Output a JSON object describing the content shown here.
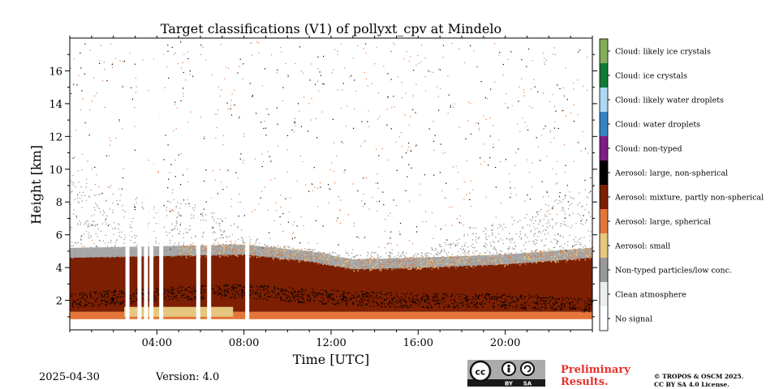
{
  "chart_data": {
    "type": "heatmap",
    "title": "Target classifications (V1) of pollyxt_cpv at Mindelo",
    "xlabel": "Time [UTC]",
    "ylabel": "Height [km]",
    "x_unit": "hours UTC",
    "xlim": [
      0,
      24
    ],
    "ylim": [
      0.2,
      18
    ],
    "x_tick_values": [
      4,
      8,
      12,
      16,
      20
    ],
    "x_tick_labels": [
      "04:00",
      "08:00",
      "12:00",
      "16:00",
      "20:00"
    ],
    "y_tick_values": [
      2,
      4,
      6,
      8,
      10,
      12,
      14,
      16
    ],
    "y_tick_labels": [
      "2",
      "4",
      "6",
      "8",
      "10",
      "12",
      "14",
      "16"
    ],
    "legend_placement": "right colorbar",
    "classes": [
      {
        "label": "No signal",
        "color": "#ffffff"
      },
      {
        "label": "Clean atmosphere",
        "color": "#eeeeee"
      },
      {
        "label": "Non-typed particles/low conc.",
        "color": "#999999"
      },
      {
        "label": "Aerosol: small",
        "color": "#e5c77f"
      },
      {
        "label": "Aerosol: large, spherical",
        "color": "#e5763a"
      },
      {
        "label": "Aerosol: mixture, partly non-spherical",
        "color": "#7d1f02"
      },
      {
        "label": "Aerosol: large, non-spherical",
        "color": "#000000"
      },
      {
        "label": "Cloud: non-typed",
        "color": "#7f1d86"
      },
      {
        "label": "Cloud: water droplets",
        "color": "#3584c4"
      },
      {
        "label": "Cloud: likely water droplets",
        "color": "#b0d8f2"
      },
      {
        "label": "Cloud: ice crystals",
        "color": "#107a37"
      },
      {
        "label": "Cloud: likely ice crystals",
        "color": "#83ad5b"
      }
    ],
    "layers": [
      {
        "class": "Aerosol: large, spherical",
        "x": [
          0,
          24
        ],
        "y_bottom": 0.85,
        "y_top": 1.3
      },
      {
        "class": "Aerosol: small",
        "x": [
          2.5,
          7.5
        ],
        "y_bottom": 1.0,
        "y_top": 1.6
      },
      {
        "class": "Aerosol: mixture, partly non-spherical",
        "x": [
          0,
          24
        ],
        "y_bottom": 1.3,
        "y_top_points": [
          [
            0,
            4.6
          ],
          [
            4,
            4.7
          ],
          [
            8,
            4.8
          ],
          [
            11,
            4.4
          ],
          [
            13,
            3.9
          ],
          [
            16,
            4.0
          ],
          [
            20,
            4.2
          ],
          [
            24,
            4.6
          ]
        ]
      },
      {
        "class": "Aerosol: large, non-spherical",
        "x": [
          0,
          24
        ],
        "y_center_points": [
          [
            0,
            2.0
          ],
          [
            4,
            2.4
          ],
          [
            8,
            2.6
          ],
          [
            12,
            2.2
          ],
          [
            16,
            2.0
          ],
          [
            20,
            2.0
          ],
          [
            24,
            1.7
          ]
        ]
      },
      {
        "class": "Non-typed particles/low conc.",
        "x": [
          0,
          24
        ],
        "y_top_points": [
          [
            0,
            10.0
          ],
          [
            3,
            8.5
          ],
          [
            6,
            8.0
          ],
          [
            9,
            5.5
          ],
          [
            12,
            5.0
          ],
          [
            16,
            5.0
          ],
          [
            20,
            7.0
          ],
          [
            24,
            9.0
          ]
        ]
      }
    ],
    "data_gaps_hours": [
      2.65,
      3.2,
      3.5,
      3.75,
      4.2,
      5.9,
      6.4,
      8.15
    ]
  },
  "footer": {
    "date": "2025-04-30",
    "version": "Version: 4.0",
    "preliminary": [
      "Preliminary",
      "Results."
    ],
    "copyright": [
      "© TROPOS & OSCM 2025.",
      "CC BY SA 4.0 License."
    ],
    "badge_text": [
      "cc",
      "BY",
      "SA"
    ]
  }
}
